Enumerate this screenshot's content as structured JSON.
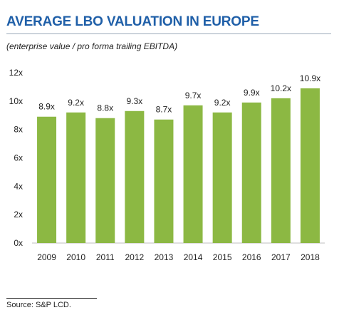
{
  "header": {
    "title": "AVERAGE LBO VALUATION IN EUROPE",
    "subtitle": "(enterprise value / pro forma trailing EBITDA)"
  },
  "footer": {
    "source": "Source:  S&P LCD."
  },
  "colors": {
    "bar": "#8cb843",
    "title": "#1f5fa8"
  },
  "chart_data": {
    "type": "bar",
    "categories": [
      "2009",
      "2010",
      "2011",
      "2012",
      "2013",
      "2014",
      "2015",
      "2016",
      "2017",
      "2018"
    ],
    "values": [
      8.9,
      9.2,
      8.8,
      9.3,
      8.7,
      9.7,
      9.2,
      9.9,
      10.2,
      10.9
    ],
    "data_labels": [
      "8.9x",
      "9.2x",
      "8.8x",
      "9.3x",
      "8.7x",
      "9.7x",
      "9.2x",
      "9.9x",
      "10.2x",
      "10.9x"
    ],
    "yticks": [
      0,
      2,
      4,
      6,
      8,
      10,
      12
    ],
    "ytick_labels": [
      "0x",
      "2x",
      "4x",
      "6x",
      "8x",
      "10x",
      "12x"
    ],
    "ylim": [
      0,
      12
    ],
    "grid": false,
    "legend": "none"
  }
}
